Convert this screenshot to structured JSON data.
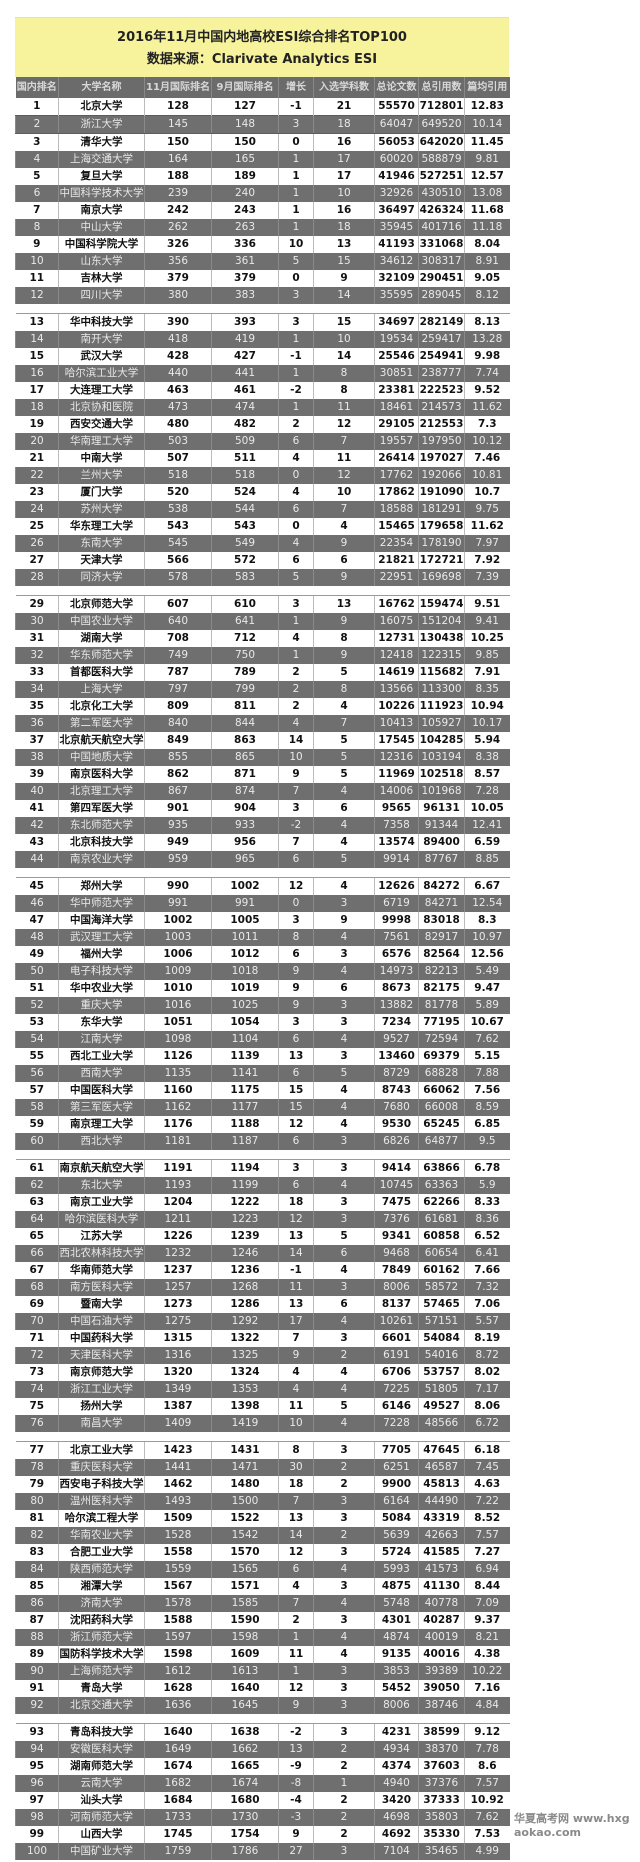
{
  "title": "2016年11月中国内地高校ESI综合排名TOP100",
  "subtitle": "数据来源：Clarivate Analytics ESI",
  "columns": [
    "国内排名",
    "大学名称",
    "11月国际排名",
    "9月国际排名",
    "增长",
    "入选学科数",
    "总论文数",
    "总引用数",
    "篇均引用"
  ],
  "highlight_color": "#b33333",
  "groups": [
    12,
    16,
    16,
    16,
    16,
    16,
    8
  ],
  "rows": [
    [
      "1",
      "北京大学",
      "128",
      "127",
      "-1",
      "21",
      "55570",
      "712801",
      "12.83"
    ],
    [
      "2",
      "浙江大学",
      "145",
      "148",
      "3",
      "18",
      "64047",
      "649520",
      "10.14"
    ],
    [
      "3",
      "清华大学",
      "150",
      "150",
      "0",
      "16",
      "56053",
      "642020",
      "11.45"
    ],
    [
      "4",
      "上海交通大学",
      "164",
      "165",
      "1",
      "17",
      "60020",
      "588879",
      "9.81"
    ],
    [
      "5",
      "复旦大学",
      "188",
      "189",
      "1",
      "17",
      "41946",
      "527251",
      "12.57"
    ],
    [
      "6",
      "中国科学技术大学",
      "239",
      "240",
      "1",
      "10",
      "32926",
      "430510",
      "13.08"
    ],
    [
      "7",
      "南京大学",
      "242",
      "243",
      "1",
      "16",
      "36497",
      "426324",
      "11.68"
    ],
    [
      "8",
      "中山大学",
      "262",
      "263",
      "1",
      "18",
      "35945",
      "401716",
      "11.18"
    ],
    [
      "9",
      "中国科学院大学",
      "326",
      "336",
      "10",
      "13",
      "41193",
      "331068",
      "8.04"
    ],
    [
      "10",
      "山东大学",
      "356",
      "361",
      "5",
      "15",
      "34612",
      "308317",
      "8.91"
    ],
    [
      "11",
      "吉林大学",
      "379",
      "379",
      "0",
      "9",
      "32109",
      "290451",
      "9.05"
    ],
    [
      "12",
      "四川大学",
      "380",
      "383",
      "3",
      "14",
      "35595",
      "289045",
      "8.12"
    ],
    [
      "13",
      "华中科技大学",
      "390",
      "393",
      "3",
      "15",
      "34697",
      "282149",
      "8.13"
    ],
    [
      "14",
      "南开大学",
      "418",
      "419",
      "1",
      "10",
      "19534",
      "259417",
      "13.28"
    ],
    [
      "15",
      "武汉大学",
      "428",
      "427",
      "-1",
      "14",
      "25546",
      "254941",
      "9.98"
    ],
    [
      "16",
      "哈尔滨工业大学",
      "440",
      "441",
      "1",
      "8",
      "30851",
      "238777",
      "7.74"
    ],
    [
      "17",
      "大连理工大学",
      "463",
      "461",
      "-2",
      "8",
      "23381",
      "222523",
      "9.52"
    ],
    [
      "18",
      "北京协和医院",
      "473",
      "474",
      "1",
      "11",
      "18461",
      "214573",
      "11.62"
    ],
    [
      "19",
      "西安交通大学",
      "480",
      "482",
      "2",
      "12",
      "29105",
      "212553",
      "7.3"
    ],
    [
      "20",
      "华南理工大学",
      "503",
      "509",
      "6",
      "7",
      "19557",
      "197950",
      "10.12"
    ],
    [
      "21",
      "中南大学",
      "507",
      "511",
      "4",
      "11",
      "26414",
      "197027",
      "7.46"
    ],
    [
      "22",
      "兰州大学",
      "518",
      "518",
      "0",
      "12",
      "17762",
      "192066",
      "10.81"
    ],
    [
      "23",
      "厦门大学",
      "520",
      "524",
      "4",
      "10",
      "17862",
      "191090",
      "10.7"
    ],
    [
      "24",
      "苏州大学",
      "538",
      "544",
      "6",
      "7",
      "18588",
      "181291",
      "9.75"
    ],
    [
      "25",
      "华东理工大学",
      "543",
      "543",
      "0",
      "4",
      "15465",
      "179658",
      "11.62"
    ],
    [
      "26",
      "东南大学",
      "545",
      "549",
      "4",
      "9",
      "22354",
      "178190",
      "7.97"
    ],
    [
      "27",
      "天津大学",
      "566",
      "572",
      "6",
      "6",
      "21821",
      "172721",
      "7.92"
    ],
    [
      "28",
      "同济大学",
      "578",
      "583",
      "5",
      "9",
      "22951",
      "169698",
      "7.39"
    ],
    [
      "29",
      "北京师范大学",
      "607",
      "610",
      "3",
      "13",
      "16762",
      "159474",
      "9.51"
    ],
    [
      "30",
      "中国农业大学",
      "640",
      "641",
      "1",
      "9",
      "16075",
      "151204",
      "9.41"
    ],
    [
      "31",
      "湖南大学",
      "708",
      "712",
      "4",
      "8",
      "12731",
      "130438",
      "10.25"
    ],
    [
      "32",
      "华东师范大学",
      "749",
      "750",
      "1",
      "9",
      "12418",
      "122315",
      "9.85"
    ],
    [
      "33",
      "首都医科大学",
      "787",
      "789",
      "2",
      "5",
      "14619",
      "115682",
      "7.91"
    ],
    [
      "34",
      "上海大学",
      "797",
      "799",
      "2",
      "8",
      "13566",
      "113300",
      "8.35"
    ],
    [
      "35",
      "北京化工大学",
      "809",
      "811",
      "2",
      "4",
      "10226",
      "111923",
      "10.94"
    ],
    [
      "36",
      "第二军医大学",
      "840",
      "844",
      "4",
      "7",
      "10413",
      "105927",
      "10.17"
    ],
    [
      "37",
      "北京航天航空大学",
      "849",
      "863",
      "14",
      "5",
      "17545",
      "104285",
      "5.94"
    ],
    [
      "38",
      "中国地质大学",
      "855",
      "865",
      "10",
      "5",
      "12316",
      "103194",
      "8.38"
    ],
    [
      "39",
      "南京医科大学",
      "862",
      "871",
      "9",
      "5",
      "11969",
      "102518",
      "8.57"
    ],
    [
      "40",
      "北京理工大学",
      "867",
      "874",
      "7",
      "4",
      "14006",
      "101968",
      "7.28"
    ],
    [
      "41",
      "第四军医大学",
      "901",
      "904",
      "3",
      "6",
      "9565",
      "96131",
      "10.05"
    ],
    [
      "42",
      "东北师范大学",
      "935",
      "933",
      "-2",
      "4",
      "7358",
      "91344",
      "12.41"
    ],
    [
      "43",
      "北京科技大学",
      "949",
      "956",
      "7",
      "4",
      "13574",
      "89400",
      "6.59"
    ],
    [
      "44",
      "南京农业大学",
      "959",
      "965",
      "6",
      "5",
      "9914",
      "87767",
      "8.85"
    ],
    [
      "45",
      "郑州大学",
      "990",
      "1002",
      "12",
      "4",
      "12626",
      "84272",
      "6.67"
    ],
    [
      "46",
      "华中师范大学",
      "991",
      "991",
      "0",
      "3",
      "6719",
      "84271",
      "12.54"
    ],
    [
      "47",
      "中国海洋大学",
      "1002",
      "1005",
      "3",
      "9",
      "9998",
      "83018",
      "8.3"
    ],
    [
      "48",
      "武汉理工大学",
      "1003",
      "1011",
      "8",
      "4",
      "7561",
      "82917",
      "10.97"
    ],
    [
      "49",
      "福州大学",
      "1006",
      "1012",
      "6",
      "3",
      "6576",
      "82564",
      "12.56"
    ],
    [
      "50",
      "电子科技大学",
      "1009",
      "1018",
      "9",
      "4",
      "14973",
      "82213",
      "5.49"
    ],
    [
      "51",
      "华中农业大学",
      "1010",
      "1019",
      "9",
      "6",
      "8673",
      "82175",
      "9.47"
    ],
    [
      "52",
      "重庆大学",
      "1016",
      "1025",
      "9",
      "3",
      "13882",
      "81778",
      "5.89"
    ],
    [
      "53",
      "东华大学",
      "1051",
      "1054",
      "3",
      "3",
      "7234",
      "77195",
      "10.67"
    ],
    [
      "54",
      "江南大学",
      "1098",
      "1104",
      "6",
      "4",
      "9527",
      "72594",
      "7.62"
    ],
    [
      "55",
      "西北工业大学",
      "1126",
      "1139",
      "13",
      "3",
      "13460",
      "69379",
      "5.15"
    ],
    [
      "56",
      "西南大学",
      "1135",
      "1141",
      "6",
      "5",
      "8729",
      "68828",
      "7.88"
    ],
    [
      "57",
      "中国医科大学",
      "1160",
      "1175",
      "15",
      "4",
      "8743",
      "66062",
      "7.56"
    ],
    [
      "58",
      "第三军医大学",
      "1162",
      "1177",
      "15",
      "4",
      "7680",
      "66008",
      "8.59"
    ],
    [
      "59",
      "南京理工大学",
      "1176",
      "1188",
      "12",
      "4",
      "9530",
      "65245",
      "6.85"
    ],
    [
      "60",
      "西北大学",
      "1181",
      "1187",
      "6",
      "3",
      "6826",
      "64877",
      "9.5"
    ],
    [
      "61",
      "南京航天航空大学",
      "1191",
      "1194",
      "3",
      "3",
      "9414",
      "63866",
      "6.78"
    ],
    [
      "62",
      "东北大学",
      "1193",
      "1199",
      "6",
      "4",
      "10745",
      "63363",
      "5.9"
    ],
    [
      "63",
      "南京工业大学",
      "1204",
      "1222",
      "18",
      "3",
      "7475",
      "62266",
      "8.33"
    ],
    [
      "64",
      "哈尔滨医科大学",
      "1211",
      "1223",
      "12",
      "3",
      "7376",
      "61681",
      "8.36"
    ],
    [
      "65",
      "江苏大学",
      "1226",
      "1239",
      "13",
      "5",
      "9341",
      "60858",
      "6.52"
    ],
    [
      "66",
      "西北农林科技大学",
      "1232",
      "1246",
      "14",
      "6",
      "9468",
      "60654",
      "6.41"
    ],
    [
      "67",
      "华南师范大学",
      "1237",
      "1236",
      "-1",
      "4",
      "7849",
      "60162",
      "7.66"
    ],
    [
      "68",
      "南方医科大学",
      "1257",
      "1268",
      "11",
      "3",
      "8006",
      "58572",
      "7.32"
    ],
    [
      "69",
      "暨南大学",
      "1273",
      "1286",
      "13",
      "6",
      "8137",
      "57465",
      "7.06"
    ],
    [
      "70",
      "中国石油大学",
      "1275",
      "1292",
      "17",
      "4",
      "10261",
      "57151",
      "5.57"
    ],
    [
      "71",
      "中国药科大学",
      "1315",
      "1322",
      "7",
      "3",
      "6601",
      "54084",
      "8.19"
    ],
    [
      "72",
      "天津医科大学",
      "1316",
      "1325",
      "9",
      "2",
      "6191",
      "54016",
      "8.72"
    ],
    [
      "73",
      "南京师范大学",
      "1320",
      "1324",
      "4",
      "4",
      "6706",
      "53757",
      "8.02"
    ],
    [
      "74",
      "浙江工业大学",
      "1349",
      "1353",
      "4",
      "4",
      "7225",
      "51805",
      "7.17"
    ],
    [
      "75",
      "扬州大学",
      "1387",
      "1398",
      "11",
      "5",
      "6146",
      "49527",
      "8.06"
    ],
    [
      "76",
      "南昌大学",
      "1409",
      "1419",
      "10",
      "4",
      "7228",
      "48566",
      "6.72"
    ],
    [
      "77",
      "北京工业大学",
      "1423",
      "1431",
      "8",
      "3",
      "7705",
      "47645",
      "6.18"
    ],
    [
      "78",
      "重庆医科大学",
      "1441",
      "1471",
      "30",
      "2",
      "6251",
      "46587",
      "7.45"
    ],
    [
      "79",
      "西安电子科技大学",
      "1462",
      "1480",
      "18",
      "2",
      "9900",
      "45813",
      "4.63"
    ],
    [
      "80",
      "温州医科大学",
      "1493",
      "1500",
      "7",
      "3",
      "6164",
      "44490",
      "7.22"
    ],
    [
      "81",
      "哈尔滨工程大学",
      "1509",
      "1522",
      "13",
      "3",
      "5084",
      "43319",
      "8.52"
    ],
    [
      "82",
      "华南农业大学",
      "1528",
      "1542",
      "14",
      "2",
      "5639",
      "42663",
      "7.57"
    ],
    [
      "83",
      "合肥工业大学",
      "1558",
      "1570",
      "12",
      "3",
      "5724",
      "41585",
      "7.27"
    ],
    [
      "84",
      "陕西师范大学",
      "1559",
      "1565",
      "6",
      "4",
      "5993",
      "41573",
      "6.94"
    ],
    [
      "85",
      "湘潭大学",
      "1567",
      "1571",
      "4",
      "3",
      "4875",
      "41130",
      "8.44"
    ],
    [
      "86",
      "济南大学",
      "1578",
      "1585",
      "7",
      "4",
      "5748",
      "40778",
      "7.09"
    ],
    [
      "87",
      "沈阳药科大学",
      "1588",
      "1590",
      "2",
      "3",
      "4301",
      "40287",
      "9.37"
    ],
    [
      "88",
      "浙江师范大学",
      "1597",
      "1598",
      "1",
      "4",
      "4874",
      "40019",
      "8.21"
    ],
    [
      "89",
      "国防科学技术大学",
      "1598",
      "1609",
      "11",
      "4",
      "9135",
      "40016",
      "4.38"
    ],
    [
      "90",
      "上海师范大学",
      "1612",
      "1613",
      "1",
      "3",
      "3853",
      "39389",
      "10.22"
    ],
    [
      "91",
      "青岛大学",
      "1628",
      "1640",
      "12",
      "3",
      "5452",
      "39050",
      "7.16"
    ],
    [
      "92",
      "北京交通大学",
      "1636",
      "1645",
      "9",
      "3",
      "8006",
      "38746",
      "4.84"
    ],
    [
      "93",
      "青岛科技大学",
      "1640",
      "1638",
      "-2",
      "3",
      "4231",
      "38599",
      "9.12"
    ],
    [
      "94",
      "安徽医科大学",
      "1649",
      "1662",
      "13",
      "2",
      "4934",
      "38370",
      "7.78"
    ],
    [
      "95",
      "湖南师范大学",
      "1674",
      "1665",
      "-9",
      "2",
      "4374",
      "37603",
      "8.6"
    ],
    [
      "96",
      "云南大学",
      "1682",
      "1674",
      "-8",
      "1",
      "4940",
      "37376",
      "7.57"
    ],
    [
      "97",
      "汕头大学",
      "1684",
      "1680",
      "-4",
      "2",
      "3420",
      "37333",
      "10.92"
    ],
    [
      "98",
      "河南师范大学",
      "1733",
      "1730",
      "-3",
      "2",
      "4698",
      "35803",
      "7.62"
    ],
    [
      "99",
      "山西大学",
      "1745",
      "1754",
      "9",
      "2",
      "4692",
      "35330",
      "7.53"
    ],
    [
      "100",
      "中国矿业大学",
      "1759",
      "1786",
      "27",
      "3",
      "7104",
      "35465",
      "4.99"
    ]
  ],
  "watermark": "华夏高考网 www.hxgaokao.com"
}
